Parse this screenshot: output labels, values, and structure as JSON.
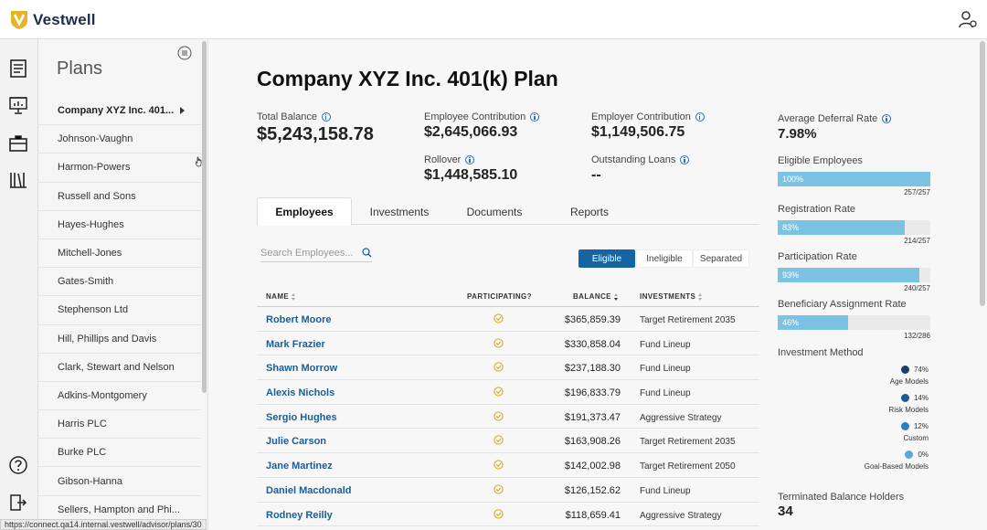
{
  "app": {
    "brand": "Vestwell"
  },
  "sidebar_title": "Plans",
  "plans": [
    "Company XYZ Inc. 401...",
    "Johnson-Vaughn",
    "Harmon-Powers",
    "Russell and Sons",
    "Hayes-Hughes",
    "Mitchell-Jones",
    "Gates-Smith",
    "Stephenson Ltd",
    "Hill, Phillips and Davis",
    "Clark, Stewart and Nelson",
    "Adkins-Montgomery",
    "Harris PLC",
    "Burke PLC",
    "Gibson-Hanna",
    "Sellers, Hampton and Phi..."
  ],
  "page_title": "Company XYZ Inc. 401(k) Plan",
  "stats": {
    "total_balance": {
      "label": "Total Balance",
      "value": "$5,243,158.78"
    },
    "employee_contribution": {
      "label": "Employee Contribution",
      "value": "$2,645,066.93"
    },
    "employer_contribution": {
      "label": "Employer Contribution",
      "value": "$1,149,506.75"
    },
    "rollover": {
      "label": "Rollover",
      "value": "$1,448,585.10"
    },
    "outstanding_loans": {
      "label": "Outstanding Loans",
      "value": "--"
    }
  },
  "tabs": [
    "Employees",
    "Investments",
    "Documents",
    "Reports"
  ],
  "search": {
    "placeholder": "Search Employees..."
  },
  "filters": [
    "Eligible",
    "Ineligible",
    "Separated"
  ],
  "table": {
    "headers": {
      "name": "NAME",
      "participating": "PARTICIPATING?",
      "balance": "BALANCE",
      "investments": "INVESTMENTS"
    },
    "rows": [
      {
        "name": "Robert Moore",
        "balance": "$365,859.39",
        "investment": "Target Retirement 2035"
      },
      {
        "name": "Mark Frazier",
        "balance": "$330,858.04",
        "investment": "Fund Lineup"
      },
      {
        "name": "Shawn Morrow",
        "balance": "$237,188.30",
        "investment": "Fund Lineup"
      },
      {
        "name": "Alexis Nichols",
        "balance": "$196,833.79",
        "investment": "Fund Lineup"
      },
      {
        "name": "Sergio Hughes",
        "balance": "$191,373.47",
        "investment": "Aggressive Strategy"
      },
      {
        "name": "Julie Carson",
        "balance": "$163,908.26",
        "investment": "Target Retirement 2035"
      },
      {
        "name": "Jane Martinez",
        "balance": "$142,002.98",
        "investment": "Target Retirement 2050"
      },
      {
        "name": "Daniel Macdonald",
        "balance": "$126,152.62",
        "investment": "Fund Lineup"
      },
      {
        "name": "Rodney Reilly",
        "balance": "$118,659.41",
        "investment": "Aggressive Strategy"
      }
    ]
  },
  "right": {
    "avg_deferral": {
      "label": "Average Deferral Rate",
      "value": "7.98%"
    },
    "bars": [
      {
        "label": "Eligible Employees",
        "percent_text": "100%",
        "percent": 100,
        "count": "257/257"
      },
      {
        "label": "Registration Rate",
        "percent_text": "83%",
        "percent": 83,
        "count": "214/257"
      },
      {
        "label": "Participation Rate",
        "percent_text": "93%",
        "percent": 93,
        "count": "240/257"
      },
      {
        "label": "Beneficiary Assignment Rate",
        "percent_text": "46%",
        "percent": 46,
        "count": "132/286"
      }
    ],
    "investment_method": {
      "label": "Investment Method",
      "items": [
        {
          "percent": "74%",
          "name": "Age Models",
          "color": "#1b3f6b"
        },
        {
          "percent": "14%",
          "name": "Risk Models",
          "color": "#1d5a94"
        },
        {
          "percent": "12%",
          "name": "Custom",
          "color": "#2d7fc0"
        },
        {
          "percent": "0%",
          "name": "Goal-Based Models",
          "color": "#5aa6dd"
        }
      ]
    },
    "terminated": {
      "label": "Terminated Balance Holders",
      "value": "34"
    }
  },
  "status_url": "https://connect.qa14.internal.vestwell/advisor/plans/30",
  "colors": {
    "primary": "#1764a3",
    "link": "#1a5d99",
    "bar": "#7cc3e3",
    "check": "#d8a800"
  }
}
